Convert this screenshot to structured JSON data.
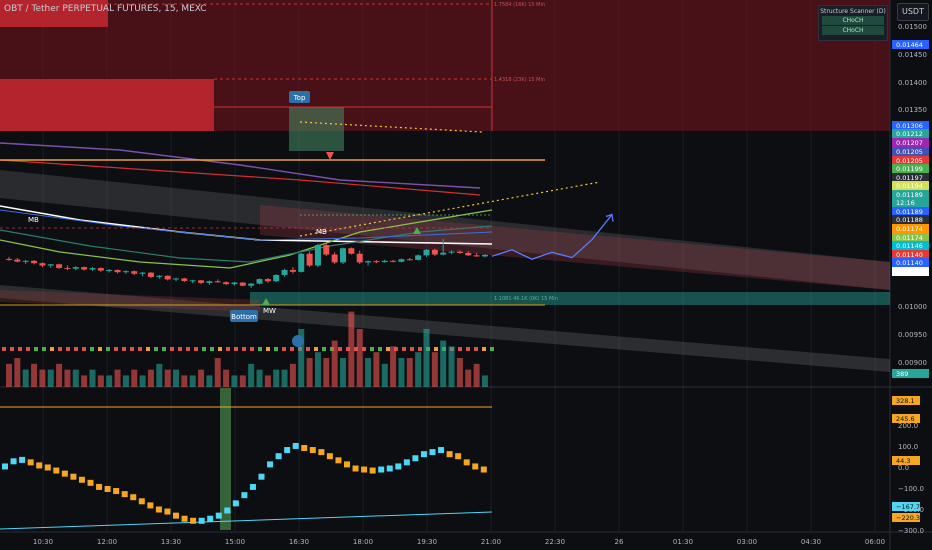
{
  "header": {
    "symbol": "OBT / Tether PERPETUAL FUTURES, 15, MEXC",
    "currency": "USDT"
  },
  "scanner": {
    "title": "Structure Scanner (D)",
    "items": [
      "CHoCH",
      "CHoCH"
    ]
  },
  "colors": {
    "background": "#0c0e12",
    "bull": "#26a69a",
    "bear": "#ef5350",
    "ema_white": "#ffffff",
    "ema_orange": "#f0a030",
    "ema_purple": "#7b52ab",
    "projection": "#5b7bff",
    "osc_cyan": "#4fd6f5",
    "osc_orange": "#f5a623"
  },
  "chart_data": [
    {
      "type": "candlestick",
      "title": "OBT / Tether PERPETUAL FUTURES, 15, MEXC",
      "price_ticks": [
        "0.01500",
        "0.01450",
        "0.01400",
        "0.01350",
        "0.01000",
        "0.00950",
        "0.00900"
      ],
      "time_ticks": [
        "10:30",
        "12:00",
        "13:30",
        "15:00",
        "16:30",
        "18:00",
        "19:30",
        "21:00",
        "22:30",
        "26",
        "01:30",
        "03:00",
        "04:30",
        "06:00"
      ],
      "price_labels": [
        {
          "value": "0.01464",
          "color": "#2962ff"
        },
        {
          "value": "0.01306",
          "color": "#2962ff"
        },
        {
          "value": "0.01212",
          "color": "#26a69a"
        },
        {
          "value": "0.01207",
          "color": "#9c27b0"
        },
        {
          "value": "0.01205",
          "color": "#3f51b5"
        },
        {
          "value": "0.01205",
          "color": "#e53935"
        },
        {
          "value": "0.01199",
          "color": "#4caf50"
        },
        {
          "value": "0.01197",
          "color": "#2a2e39"
        },
        {
          "value": "0.01194",
          "color": "#d4e157"
        },
        {
          "value": "0.01189",
          "color": "#26a69a"
        },
        {
          "value": "12:16",
          "color": "#26a69a"
        },
        {
          "value": "0.01189",
          "color": "#2962ff"
        },
        {
          "value": "0.01188",
          "color": "#2a2e39"
        },
        {
          "value": "0.01174",
          "color": "#ff9800"
        },
        {
          "value": "0.01174",
          "color": "#8bc34a"
        },
        {
          "value": "0.01146",
          "color": "#00bcd4"
        },
        {
          "value": "0.01140",
          "color": "#e53935"
        },
        {
          "value": "0.01140",
          "color": "#2962ff"
        },
        {
          "value": "0.01117",
          "color": "#ffffff"
        },
        {
          "value": "389",
          "color": "#26a69a"
        }
      ],
      "candles": [
        [
          0.01182,
          0.01195,
          0.0117,
          0.01178
        ],
        [
          0.01178,
          0.01188,
          0.0116,
          0.01165
        ],
        [
          0.01165,
          0.01176,
          0.0115,
          0.0117
        ],
        [
          0.0117,
          0.01175,
          0.01148,
          0.01155
        ],
        [
          0.01155,
          0.0116,
          0.0113,
          0.0114
        ],
        [
          0.0114,
          0.0115,
          0.01125,
          0.01148
        ],
        [
          0.01148,
          0.01152,
          0.01118,
          0.01125
        ],
        [
          0.01125,
          0.0114,
          0.01112,
          0.0112
        ],
        [
          0.0112,
          0.01135,
          0.0111,
          0.0113
        ],
        [
          0.0113,
          0.01134,
          0.01108,
          0.01115
        ],
        [
          0.01115,
          0.0113,
          0.01105,
          0.01124
        ],
        [
          0.01124,
          0.01128,
          0.011,
          0.01108
        ],
        [
          0.01108,
          0.01118,
          0.01095,
          0.01112
        ],
        [
          0.01112,
          0.01116,
          0.0109,
          0.01098
        ],
        [
          0.01098,
          0.0111,
          0.01088,
          0.01104
        ],
        [
          0.01104,
          0.01108,
          0.0108,
          0.01088
        ],
        [
          0.01088,
          0.011,
          0.01072,
          0.01095
        ],
        [
          0.01095,
          0.01098,
          0.0106,
          0.01068
        ],
        [
          0.01068,
          0.0108,
          0.01055,
          0.01075
        ],
        [
          0.01075,
          0.01078,
          0.01045,
          0.01052
        ],
        [
          0.01052,
          0.01062,
          0.0104,
          0.01058
        ],
        [
          0.01058,
          0.01062,
          0.01035,
          0.01042
        ],
        [
          0.01042,
          0.0105,
          0.01028,
          0.01046
        ],
        [
          0.01046,
          0.01048,
          0.01022,
          0.0103
        ],
        [
          0.0103,
          0.01045,
          0.01018,
          0.0104
        ],
        [
          0.0104,
          0.01052,
          0.0103,
          0.01034
        ],
        [
          0.01034,
          0.0104,
          0.01018,
          0.01022
        ],
        [
          0.01022,
          0.01036,
          0.01012,
          0.01032
        ],
        [
          0.01032,
          0.01034,
          0.01008,
          0.01012
        ],
        [
          0.01012,
          0.0103,
          0.00998,
          0.01025
        ],
        [
          0.01025,
          0.01058,
          0.0102,
          0.01054
        ],
        [
          0.01054,
          0.0106,
          0.0103,
          0.0104
        ],
        [
          0.0104,
          0.01085,
          0.01035,
          0.0108
        ],
        [
          0.0108,
          0.0112,
          0.0107,
          0.01112
        ],
        [
          0.01112,
          0.0113,
          0.0109,
          0.011
        ],
        [
          0.011,
          0.0122,
          0.01095,
          0.01215
        ],
        [
          0.01215,
          0.0123,
          0.0113,
          0.0114
        ],
        [
          0.0114,
          0.0128,
          0.0113,
          0.0127
        ],
        [
          0.0127,
          0.0128,
          0.012,
          0.0121
        ],
        [
          0.0121,
          0.01225,
          0.0115,
          0.0116
        ],
        [
          0.0116,
          0.01255,
          0.0115,
          0.0125
        ],
        [
          0.0125,
          0.01255,
          0.0121,
          0.01215
        ],
        [
          0.01215,
          0.01235,
          0.0115,
          0.0116
        ],
        [
          0.0116,
          0.01172,
          0.0114,
          0.01168
        ],
        [
          0.01168,
          0.01175,
          0.01155,
          0.01162
        ],
        [
          0.01162,
          0.01178,
          0.01158,
          0.0117
        ],
        [
          0.0117,
          0.01176,
          0.0116,
          0.01164
        ],
        [
          0.01164,
          0.01185,
          0.0116,
          0.0118
        ],
        [
          0.0118,
          0.01188,
          0.01172,
          0.01176
        ],
        [
          0.01176,
          0.0121,
          0.01172,
          0.01205
        ],
        [
          0.01205,
          0.01245,
          0.01195,
          0.0124
        ],
        [
          0.0124,
          0.01248,
          0.012,
          0.0121
        ],
        [
          0.0121,
          0.0131,
          0.01205,
          0.01222
        ],
        [
          0.01222,
          0.01236,
          0.01212,
          0.01228
        ],
        [
          0.01228,
          0.01236,
          0.01215,
          0.0122
        ],
        [
          0.0122,
          0.01232,
          0.012,
          0.01205
        ],
        [
          0.01205,
          0.0122,
          0.01195,
          0.01198
        ],
        [
          0.01198,
          0.01212,
          0.01192,
          0.01208
        ]
      ],
      "annotations": [
        "Top",
        "Bottom",
        "MB",
        "MB",
        "MW",
        "1.7584 (16K) 15 Min",
        "1.4318 (23K) 15 Min",
        "1.1081 46.1K (0K) 15 Min"
      ],
      "projection_path": [
        0.01199,
        0.0124,
        0.0118,
        0.01225,
        0.0119,
        0.01305,
        0.01464
      ]
    },
    {
      "type": "bar",
      "title": "",
      "note": "volume histogram",
      "values": [
        0.4,
        0.5,
        0.3,
        0.4,
        0.3,
        0.3,
        0.4,
        0.3,
        0.3,
        0.2,
        0.3,
        0.2,
        0.2,
        0.3,
        0.2,
        0.3,
        0.2,
        0.3,
        0.4,
        0.3,
        0.3,
        0.2,
        0.2,
        0.3,
        0.2,
        0.5,
        0.3,
        0.2,
        0.2,
        0.4,
        0.3,
        0.2,
        0.3,
        0.3,
        0.4,
        1.0,
        0.5,
        0.6,
        0.5,
        0.8,
        0.5,
        1.3,
        1.0,
        0.5,
        0.6,
        0.4,
        0.7,
        0.5,
        0.5,
        0.6,
        1.0,
        0.6,
        0.8,
        0.7,
        0.5,
        0.3,
        0.4,
        0.2
      ]
    },
    {
      "type": "line",
      "title": "",
      "y_ticks": [
        "300.0",
        "200.0",
        "100.0",
        "0.0",
        "−100.0",
        "−200.0",
        "−300.0"
      ],
      "value_labels": [
        {
          "value": "328.1",
          "color": "#f5a623"
        },
        {
          "value": "245.6",
          "color": "#f5a623"
        },
        {
          "value": "44.3",
          "color": "#f5a623"
        },
        {
          "value": "−167.7",
          "color": "#4fd6f5"
        },
        {
          "value": "−220.3",
          "color": "#f5a623"
        }
      ],
      "series": [
        {
          "values": [
            10,
            35,
            42,
            30,
            15,
            5,
            -10,
            -25,
            -40,
            -55,
            -70,
            -90,
            -100,
            -110,
            -125,
            -140,
            -160,
            -180,
            -200,
            -210,
            -230,
            -245,
            -255,
            -255,
            -245,
            -230,
            -205,
            -170,
            -130,
            -90,
            -40,
            20,
            60,
            90,
            110,
            100,
            90,
            80,
            60,
            40,
            20,
            0,
            -5,
            -10,
            -5,
            0,
            10,
            30,
            50,
            70,
            80,
            90,
            70,
            60,
            30,
            10,
            -5
          ]
        }
      ]
    }
  ]
}
